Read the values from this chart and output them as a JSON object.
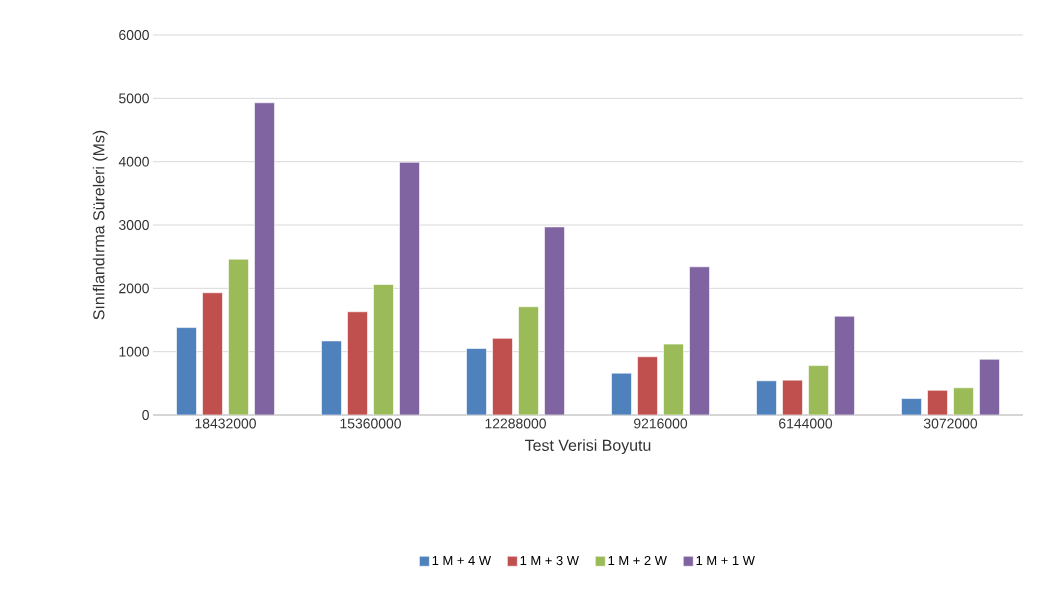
{
  "chart_data": {
    "type": "bar",
    "xlabel": "Test Verisi Boyutu",
    "ylabel": "Sınıflandırma Süreleri (Ms)",
    "categories": [
      "18432000",
      "15360000",
      "12288000",
      "9216000",
      "6144000",
      "3072000"
    ],
    "series": [
      {
        "name": "1 M + 4 W",
        "color": "#4f81bd",
        "values": [
          1380,
          1170,
          1050,
          660,
          540,
          260
        ]
      },
      {
        "name": "1 M + 3 W",
        "color": "#c0504d",
        "values": [
          1930,
          1630,
          1210,
          920,
          550,
          390
        ]
      },
      {
        "name": "1 M + 2 W",
        "color": "#9bbb59",
        "values": [
          2460,
          2060,
          1710,
          1120,
          780,
          430
        ]
      },
      {
        "name": "1 M + 1 W",
        "color": "#8064a2",
        "values": [
          4930,
          3990,
          2970,
          2340,
          1560,
          880
        ]
      }
    ],
    "ylim": [
      0,
      6000
    ],
    "yticks": [
      0,
      1000,
      2000,
      3000,
      4000,
      5000,
      6000
    ],
    "grid": "y",
    "legend": "bottom"
  }
}
